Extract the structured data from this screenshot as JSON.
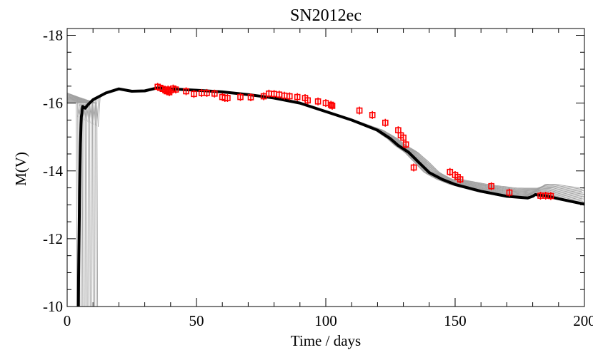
{
  "chart_data": {
    "type": "line",
    "title": "SN2012ec",
    "xlabel": "Time / days",
    "ylabel": "M(V)",
    "xlim": [
      0,
      200
    ],
    "ylim": [
      -10,
      -18.2
    ],
    "y_inverted": true,
    "xticks": [
      0,
      50,
      100,
      150,
      200
    ],
    "xtick_labels": [
      "0",
      "50",
      "100",
      "150",
      "200"
    ],
    "yticks": [
      -10,
      -12,
      -14,
      -16,
      -18
    ],
    "ytick_labels": [
      "-10",
      "-12",
      "-14",
      "-16",
      "-18"
    ],
    "grid": false,
    "colors": {
      "observations": "#ff0000",
      "best_model": "#000000",
      "models": "#a0a0a0"
    },
    "best_model": {
      "x": [
        4.3,
        4.5,
        4.8,
        5.1,
        5.5,
        6.0,
        7.0,
        8.0,
        10,
        15,
        20,
        25,
        30,
        35,
        40,
        50,
        60,
        70,
        80,
        90,
        100,
        110,
        120,
        125,
        128,
        130,
        132,
        134,
        136,
        138,
        140,
        145,
        150,
        160,
        170,
        178,
        180,
        181,
        183,
        185,
        190,
        200
      ],
      "y": [
        -10.0,
        -11.5,
        -13.3,
        -14.8,
        -15.6,
        -15.9,
        -15.85,
        -15.95,
        -16.1,
        -16.3,
        -16.42,
        -16.35,
        -16.36,
        -16.45,
        -16.42,
        -16.38,
        -16.33,
        -16.25,
        -16.15,
        -16.0,
        -15.75,
        -15.5,
        -15.2,
        -14.95,
        -14.75,
        -14.65,
        -14.55,
        -14.4,
        -14.25,
        -14.1,
        -13.95,
        -13.75,
        -13.6,
        -13.4,
        -13.25,
        -13.2,
        -13.25,
        -13.3,
        -13.28,
        -13.27,
        -13.18,
        -13.02
      ]
    },
    "observations": {
      "x": [
        35,
        36,
        37,
        38,
        38.5,
        39,
        39.5,
        40,
        41,
        42,
        46,
        49,
        52,
        54,
        57,
        60,
        61,
        62,
        67,
        71,
        76,
        78,
        80,
        82,
        84,
        86,
        89,
        92,
        93,
        97,
        100,
        102,
        102.5,
        113,
        118,
        123,
        128,
        129,
        130,
        131,
        134,
        148,
        150,
        151,
        152,
        164,
        171,
        183,
        185,
        187
      ],
      "y": [
        -16.48,
        -16.45,
        -16.42,
        -16.38,
        -16.35,
        -16.4,
        -16.32,
        -16.38,
        -16.43,
        -16.4,
        -16.35,
        -16.27,
        -16.3,
        -16.3,
        -16.28,
        -16.18,
        -16.15,
        -16.15,
        -16.18,
        -16.17,
        -16.2,
        -16.28,
        -16.27,
        -16.25,
        -16.22,
        -16.2,
        -16.18,
        -16.15,
        -16.08,
        -16.05,
        -16.0,
        -15.95,
        -15.92,
        -15.78,
        -15.65,
        -15.42,
        -15.2,
        -15.05,
        -14.98,
        -14.78,
        -14.1,
        -13.97,
        -13.88,
        -13.82,
        -13.75,
        -13.55,
        -13.36,
        -13.27,
        -13.27,
        -13.26
      ]
    }
  }
}
